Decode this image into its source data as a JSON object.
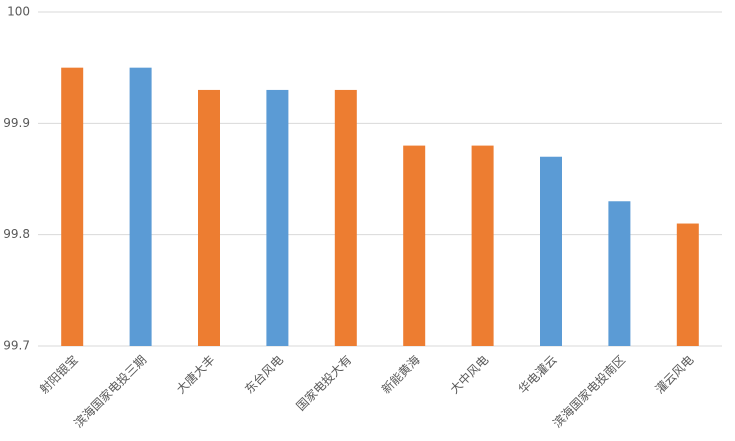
{
  "chart_data": {
    "type": "bar",
    "categories": [
      "射阳银宝",
      "滨海国家电投三期",
      "大唐大丰",
      "东台风电",
      "国家电投大有",
      "新能黄海",
      "大中风电",
      "华电灌云",
      "滨海国家电投南区",
      "灌云风电"
    ],
    "values": [
      99.95,
      99.95,
      99.93,
      99.93,
      99.93,
      99.88,
      99.88,
      99.87,
      99.83,
      99.81
    ],
    "colors": [
      "#ed7d31",
      "#5b9bd5",
      "#ed7d31",
      "#5b9bd5",
      "#ed7d31",
      "#ed7d31",
      "#ed7d31",
      "#5b9bd5",
      "#5b9bd5",
      "#ed7d31"
    ],
    "ylim": [
      99.7,
      100
    ],
    "yticks": [
      99.7,
      99.8,
      99.9,
      100
    ],
    "grid": true
  }
}
